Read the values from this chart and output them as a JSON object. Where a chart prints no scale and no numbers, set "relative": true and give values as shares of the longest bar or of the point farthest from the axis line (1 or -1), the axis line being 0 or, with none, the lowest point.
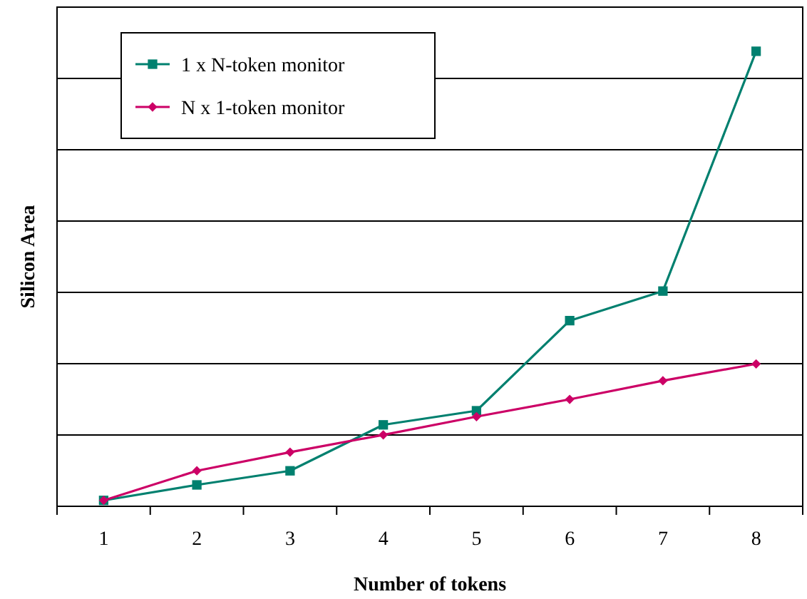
{
  "chart_data": {
    "type": "line",
    "relative": true,
    "xlabel": "Number of tokens",
    "ylabel": "Silicon Area",
    "categories": [
      "1",
      "2",
      "3",
      "4",
      "5",
      "6",
      "7",
      "8"
    ],
    "series": [
      {
        "name": "1 x N-token monitor",
        "color": "#00806f",
        "marker": "square",
        "values": [
          0.013,
          0.047,
          0.078,
          0.179,
          0.21,
          0.408,
          0.473,
          1
        ]
      },
      {
        "name": "N x 1-token monitor",
        "color": "#cc0066",
        "marker": "diamond",
        "values": [
          0.013,
          0.078,
          0.119,
          0.157,
          0.197,
          0.235,
          0.276,
          0.313
        ]
      }
    ],
    "grid": "y",
    "legend": "top left",
    "line_style": "solid"
  }
}
